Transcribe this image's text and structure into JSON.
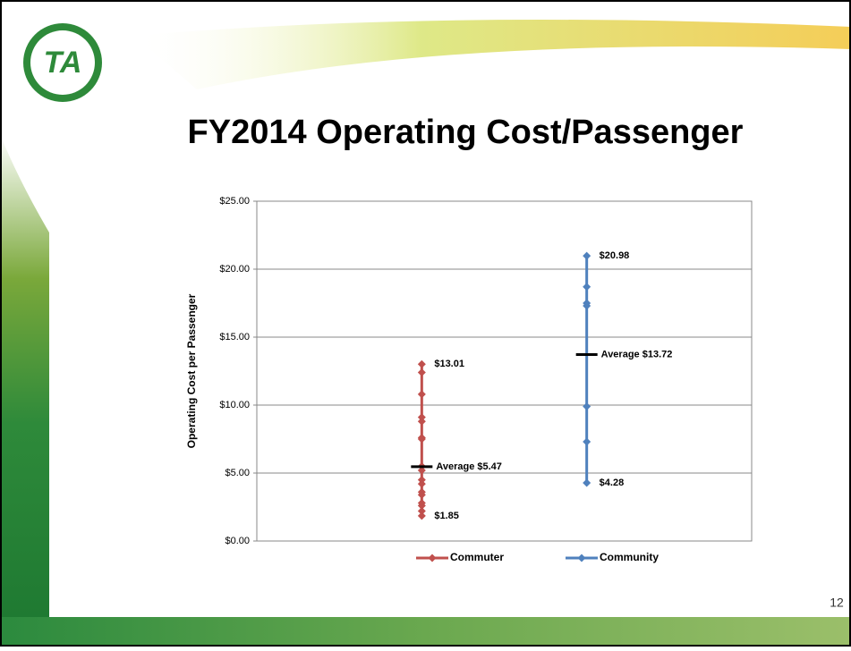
{
  "slide": {
    "title": "FY2014 Operating Cost/Passenger",
    "logo": "TA",
    "page": "12"
  },
  "chart_data": {
    "type": "line",
    "y_label": "Operating Cost per Passenger",
    "ylim": [
      0,
      25
    ],
    "yticks": [
      {
        "value": 0,
        "label": "$0.00"
      },
      {
        "value": 5,
        "label": "$5.00"
      },
      {
        "value": 10,
        "label": "$10.00"
      },
      {
        "value": 15,
        "label": "$15.00"
      },
      {
        "value": 20,
        "label": "$20.00"
      },
      {
        "value": 25,
        "label": "$25.00"
      }
    ],
    "grid": true,
    "legend": "bottom",
    "series": [
      {
        "name": "Commuter",
        "color": "#c0504d",
        "values": [
          13.01,
          12.4,
          10.8,
          9.1,
          8.8,
          7.6,
          7.5,
          5.5,
          5.2,
          4.5,
          4.2,
          3.6,
          3.4,
          2.8,
          2.6,
          2.2,
          1.85
        ],
        "value_labels": [
          "$13.01",
          null,
          null,
          null,
          null,
          null,
          null,
          null,
          null,
          null,
          null,
          null,
          null,
          null,
          null,
          null,
          "$1.85"
        ],
        "average": 5.47,
        "average_label": "Average $5.47"
      },
      {
        "name": "Community",
        "color": "#4f81bd",
        "values": [
          20.98,
          18.7,
          17.5,
          17.3,
          9.9,
          7.3,
          4.28
        ],
        "value_labels": [
          "$20.98",
          null,
          null,
          null,
          null,
          null,
          "$4.28"
        ],
        "average": 13.72,
        "average_label": "Average $13.72"
      }
    ]
  }
}
